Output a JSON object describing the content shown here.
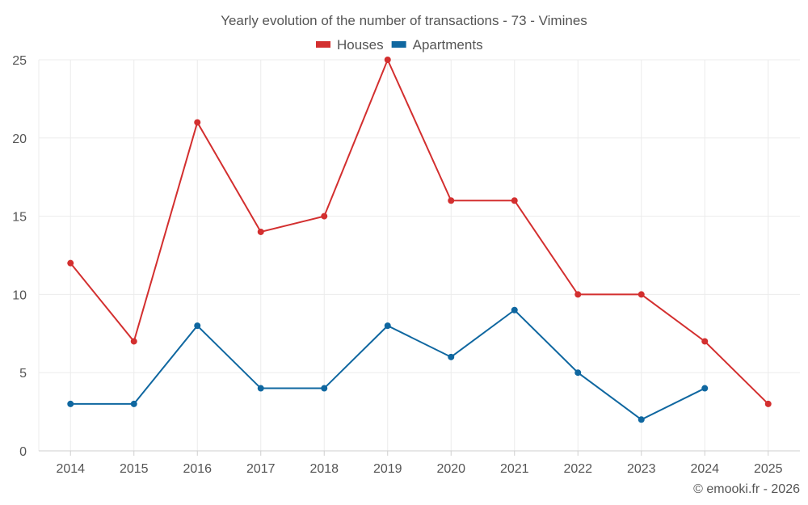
{
  "chart_data": {
    "type": "line",
    "title": "Yearly evolution of the number of transactions - 73 - Vimines",
    "xlabel": "",
    "ylabel": "",
    "ylim": [
      0,
      25
    ],
    "yticks": [
      0,
      5,
      10,
      15,
      20,
      25
    ],
    "grid": true,
    "legend_position": "top-center",
    "categories": [
      "2014",
      "2015",
      "2016",
      "2017",
      "2018",
      "2019",
      "2020",
      "2021",
      "2022",
      "2023",
      "2024",
      "2025"
    ],
    "series": [
      {
        "name": "Houses",
        "color": "#d32f2f",
        "values": [
          12,
          7,
          21,
          14,
          15,
          25,
          16,
          16,
          10,
          10,
          7,
          3
        ]
      },
      {
        "name": "Apartments",
        "color": "#0f67a0",
        "values": [
          3,
          3,
          8,
          4,
          4,
          8,
          6,
          9,
          5,
          2,
          4,
          null
        ]
      }
    ]
  },
  "credit": "© emooki.fr - 2026"
}
